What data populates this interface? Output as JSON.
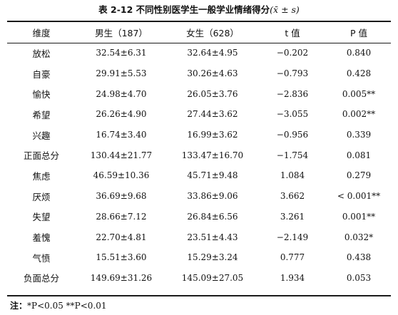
{
  "caption": {
    "title": "表 2-12  不同性别医学生一般学业情绪得分",
    "stat_notation": "(x̄ ± s)"
  },
  "table": {
    "headers": [
      "维度",
      "男生（187）",
      "女生（628）",
      "t 值",
      "P 值"
    ],
    "rows": [
      {
        "dimension": "放松",
        "male": "32.54±6.31",
        "female": "32.64±4.95",
        "t": "−0.202",
        "p": "0.840"
      },
      {
        "dimension": "自豪",
        "male": "29.91±5.53",
        "female": "30.26±4.63",
        "t": "−0.793",
        "p": "0.428"
      },
      {
        "dimension": "愉快",
        "male": "24.98±4.70",
        "female": "26.05±3.76",
        "t": "−2.836",
        "p": "0.005**"
      },
      {
        "dimension": "希望",
        "male": "26.26±4.90",
        "female": "27.44±3.62",
        "t": "−3.055",
        "p": "0.002**"
      },
      {
        "dimension": "兴趣",
        "male": "16.74±3.40",
        "female": "16.99±3.62",
        "t": "−0.956",
        "p": "0.339"
      },
      {
        "dimension": "正面总分",
        "male": "130.44±21.77",
        "female": "133.47±16.70",
        "t": "−1.754",
        "p": "0.081"
      },
      {
        "dimension": "焦虑",
        "male": "46.59±10.36",
        "female": "45.71±9.48",
        "t": "1.084",
        "p": "0.279"
      },
      {
        "dimension": "厌烦",
        "male": "36.69±9.68",
        "female": "33.86±9.06",
        "t": "3.662",
        "p": "< 0.001**"
      },
      {
        "dimension": "失望",
        "male": "28.66±7.12",
        "female": "26.84±6.56",
        "t": "3.261",
        "p": "0.001**"
      },
      {
        "dimension": "羞愧",
        "male": "22.70±4.81",
        "female": "23.51±4.43",
        "t": "−2.149",
        "p": "0.032*"
      },
      {
        "dimension": "气愤",
        "male": "15.51±3.60",
        "female": "15.29±3.24",
        "t": "0.777",
        "p": "0.438"
      },
      {
        "dimension": "负面总分",
        "male": "149.69±31.26",
        "female": "145.09±27.05",
        "t": "1.934",
        "p": "0.053"
      }
    ]
  },
  "note": {
    "label": "注：",
    "text": "*P<0.05 **P<0.01"
  }
}
